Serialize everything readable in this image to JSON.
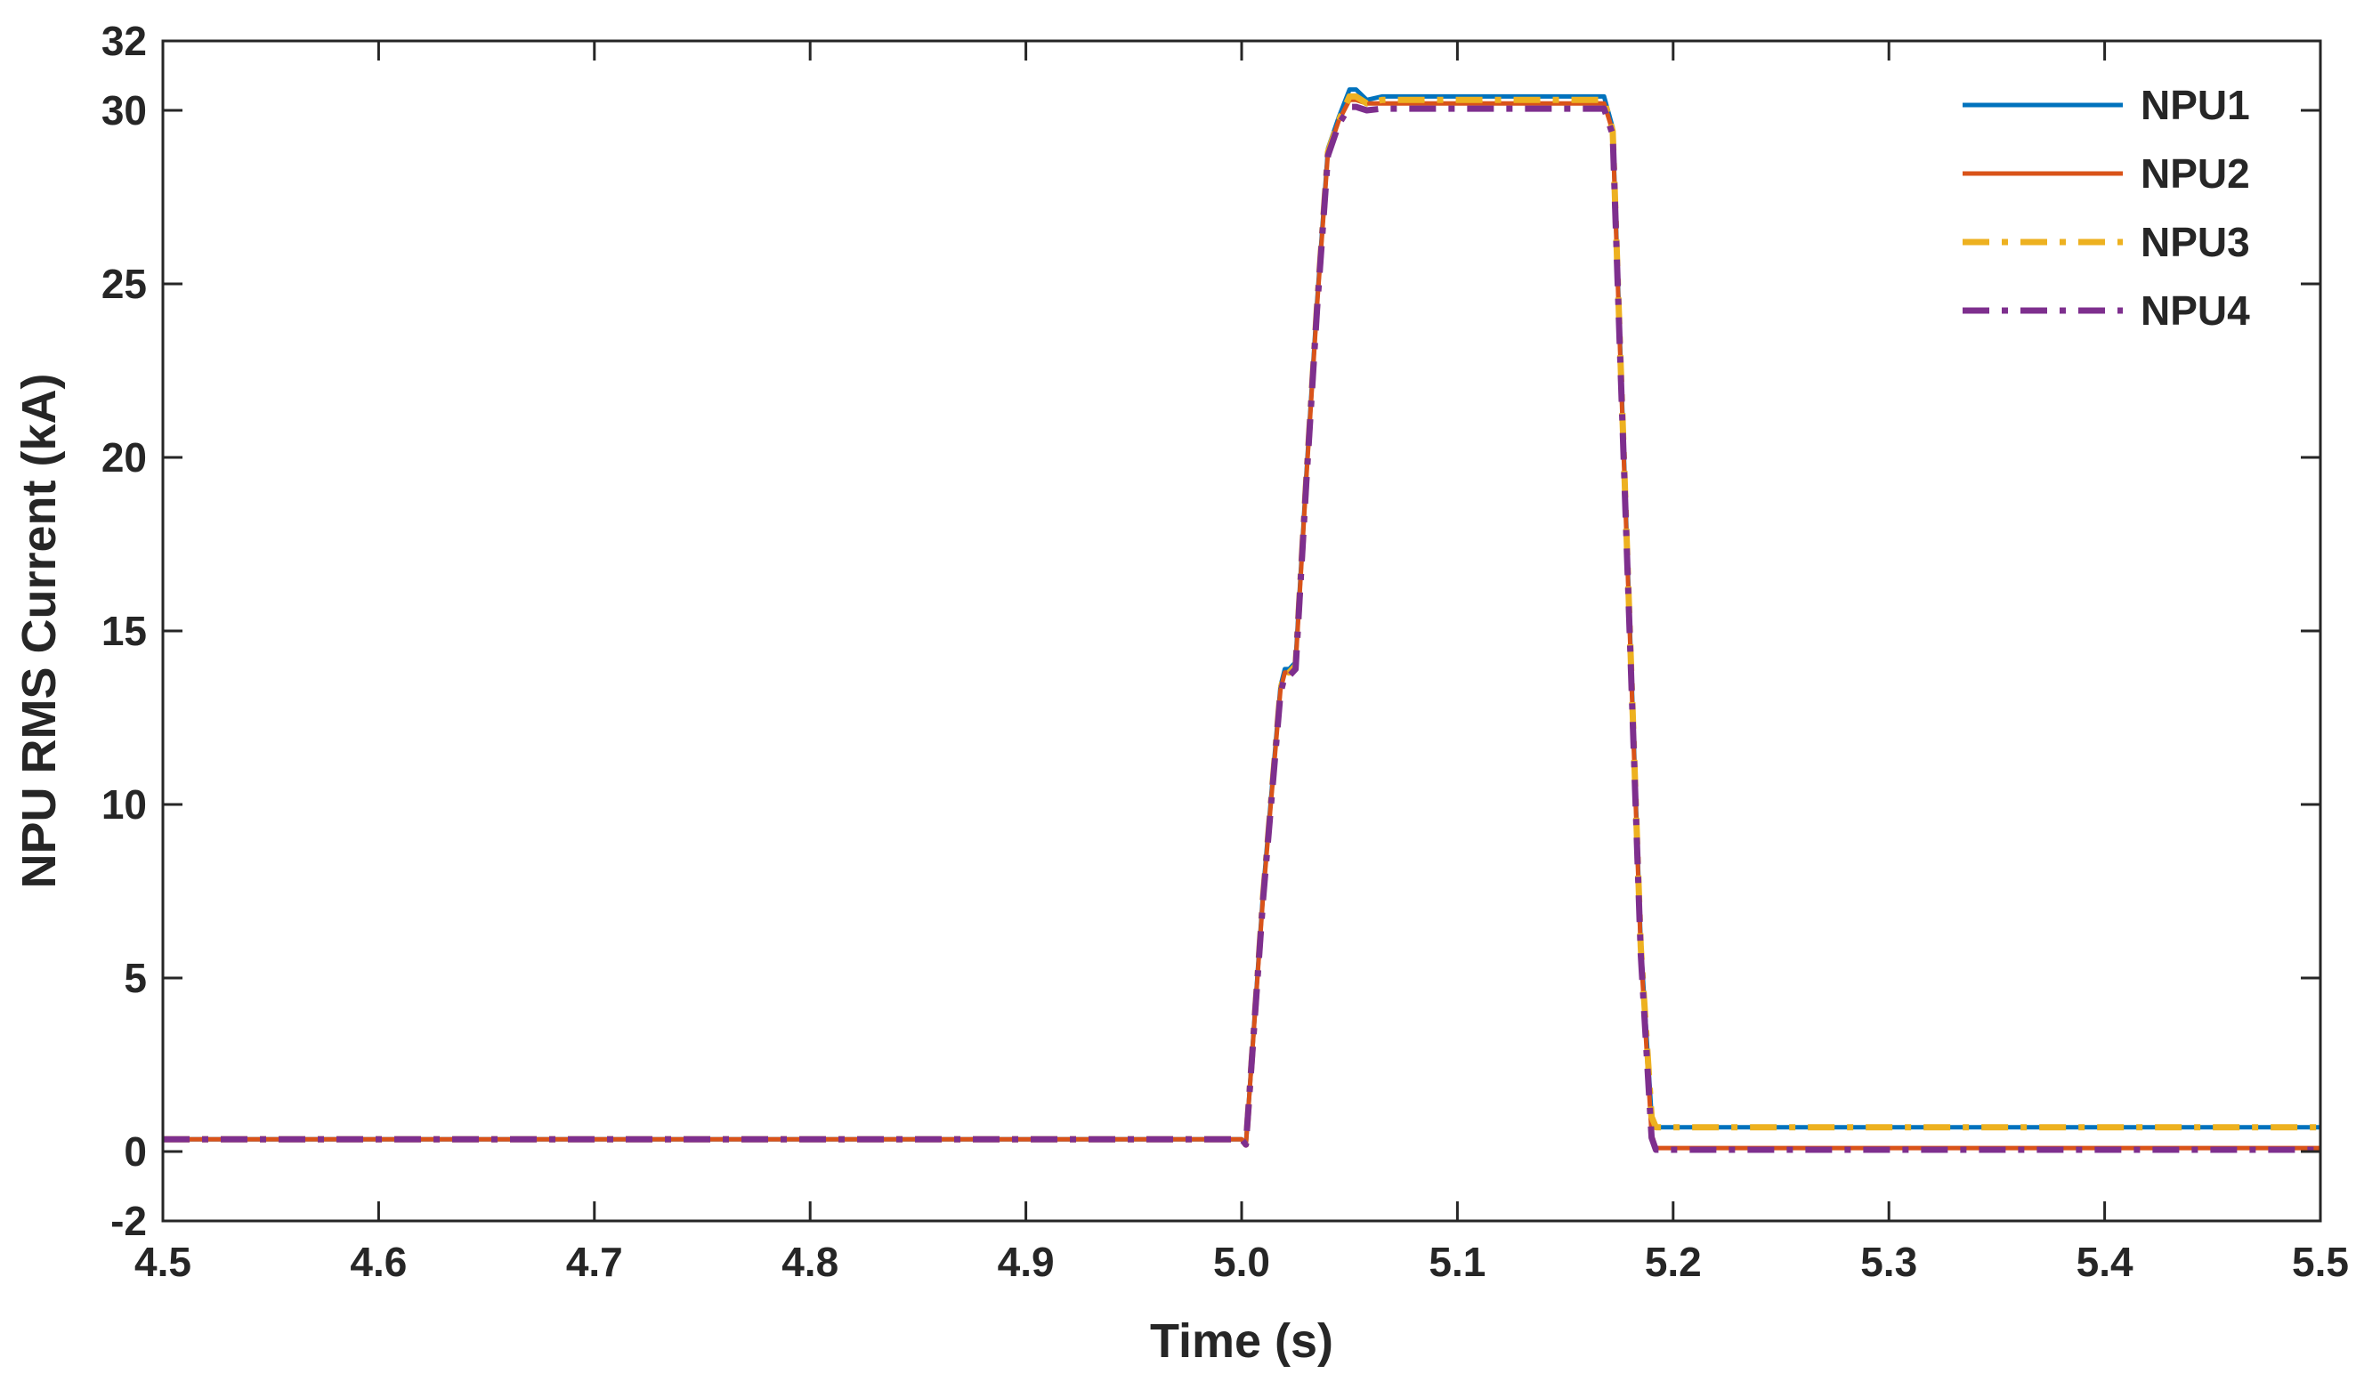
{
  "chart_data": {
    "type": "line",
    "title": "",
    "xlabel": "Time (s)",
    "ylabel": "NPU RMS Current (kA)",
    "xlim": [
      4.5,
      5.5
    ],
    "ylim": [
      -2,
      32
    ],
    "xticks": [
      4.5,
      4.6,
      4.7,
      4.8,
      4.9,
      5.0,
      5.1,
      5.2,
      5.3,
      5.4,
      5.5
    ],
    "xtick_labels": [
      "4.5",
      "4.6",
      "4.7",
      "4.8",
      "4.9",
      "5.0",
      "5.1",
      "5.2",
      "5.3",
      "5.4",
      "5.5"
    ],
    "yticks": [
      -2,
      0,
      5,
      10,
      15,
      20,
      25,
      30,
      32
    ],
    "ytick_labels": [
      "-2",
      "0",
      "5",
      "10",
      "15",
      "20",
      "25",
      "30",
      "32"
    ],
    "grid": false,
    "legend_position": "top-right",
    "series": [
      {
        "name": "NPU1",
        "color": "#0072BD",
        "dash": "solid",
        "x": [
          4.5,
          5.0,
          5.002,
          5.01,
          5.018,
          5.02,
          5.022,
          5.025,
          5.03,
          5.035,
          5.04,
          5.045,
          5.05,
          5.053,
          5.058,
          5.065,
          5.1,
          5.168,
          5.172,
          5.175,
          5.18,
          5.185,
          5.19,
          5.192,
          5.5
        ],
        "y": [
          0.35,
          0.35,
          0.2,
          7.5,
          13.4,
          13.9,
          13.9,
          14.1,
          19.5,
          24.5,
          28.9,
          29.8,
          30.6,
          30.6,
          30.3,
          30.4,
          30.4,
          30.4,
          29.5,
          24.0,
          15.0,
          6.0,
          1.0,
          0.7,
          0.7
        ]
      },
      {
        "name": "NPU2",
        "color": "#D95319",
        "dash": "solid",
        "x": [
          4.5,
          5.0,
          5.002,
          5.01,
          5.018,
          5.02,
          5.022,
          5.025,
          5.03,
          5.035,
          5.04,
          5.045,
          5.05,
          5.053,
          5.058,
          5.065,
          5.1,
          5.168,
          5.172,
          5.175,
          5.18,
          5.185,
          5.19,
          5.192,
          5.5
        ],
        "y": [
          0.35,
          0.35,
          0.2,
          7.4,
          13.3,
          13.8,
          13.8,
          14.0,
          19.4,
          24.4,
          28.8,
          29.7,
          30.3,
          30.3,
          30.2,
          30.2,
          30.2,
          30.2,
          29.4,
          23.8,
          14.8,
          5.8,
          0.5,
          0.1,
          0.1
        ]
      },
      {
        "name": "NPU3",
        "color": "#EDB120",
        "dash": "dashdot",
        "x": [
          4.5,
          5.0,
          5.002,
          5.01,
          5.018,
          5.02,
          5.022,
          5.025,
          5.03,
          5.035,
          5.04,
          5.045,
          5.05,
          5.053,
          5.058,
          5.065,
          5.1,
          5.168,
          5.172,
          5.175,
          5.18,
          5.185,
          5.19,
          5.192,
          5.5
        ],
        "y": [
          0.35,
          0.35,
          0.2,
          7.4,
          13.3,
          13.8,
          13.8,
          14.0,
          19.4,
          24.4,
          28.8,
          29.7,
          30.4,
          30.4,
          30.2,
          30.3,
          30.3,
          30.3,
          29.4,
          23.9,
          14.9,
          5.9,
          1.0,
          0.7,
          0.7
        ]
      },
      {
        "name": "NPU4",
        "color": "#7E2F8E",
        "dash": "dashdot",
        "x": [
          4.5,
          5.0,
          5.002,
          5.01,
          5.018,
          5.02,
          5.022,
          5.025,
          5.03,
          5.035,
          5.04,
          5.045,
          5.05,
          5.053,
          5.058,
          5.065,
          5.1,
          5.168,
          5.172,
          5.175,
          5.18,
          5.185,
          5.19,
          5.192,
          5.5
        ],
        "y": [
          0.35,
          0.35,
          0.2,
          7.3,
          13.2,
          13.7,
          13.7,
          13.9,
          19.3,
          24.3,
          28.7,
          29.6,
          30.1,
          30.1,
          30.0,
          30.05,
          30.05,
          30.05,
          29.3,
          23.7,
          14.7,
          5.7,
          0.4,
          0.05,
          0.05
        ]
      }
    ]
  }
}
